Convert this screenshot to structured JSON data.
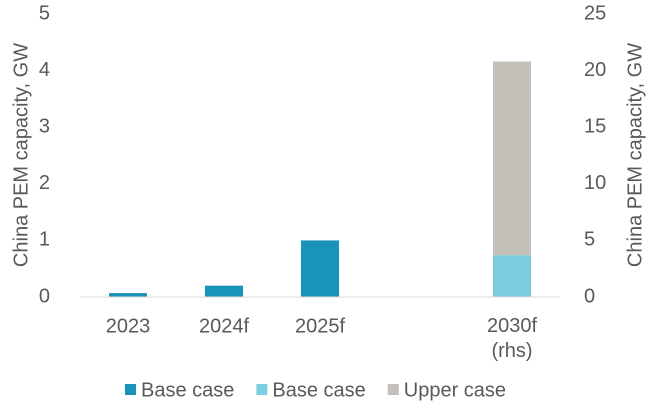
{
  "chart_data": {
    "type": "bar",
    "y_label": "China PEM capacity, GW",
    "y2_label": "China PEM capacity, GW",
    "categories": [
      "2023",
      "2024f",
      "2025f",
      null,
      "2030f (rhs)"
    ],
    "series": [
      {
        "name": "Base case",
        "color": "#1a93b8",
        "values": [
          0.07,
          0.2,
          1.0,
          null,
          null
        ]
      },
      {
        "name": "Base case",
        "color": "#7dcde0",
        "axis": "y2",
        "values": [
          null,
          null,
          null,
          null,
          3.7
        ]
      },
      {
        "name": "Upper case",
        "color": "#c5bfba",
        "axis": "y2",
        "values": [
          null,
          null,
          null,
          null,
          17.1
        ]
      }
    ],
    "stacked": true,
    "ylim": [
      0,
      5
    ],
    "yticks": [
      0,
      1,
      2,
      3,
      4,
      5
    ],
    "y2lim": [
      0,
      25
    ],
    "y2ticks": [
      0,
      5,
      10,
      15,
      20,
      25
    ],
    "legend": "bottom"
  }
}
